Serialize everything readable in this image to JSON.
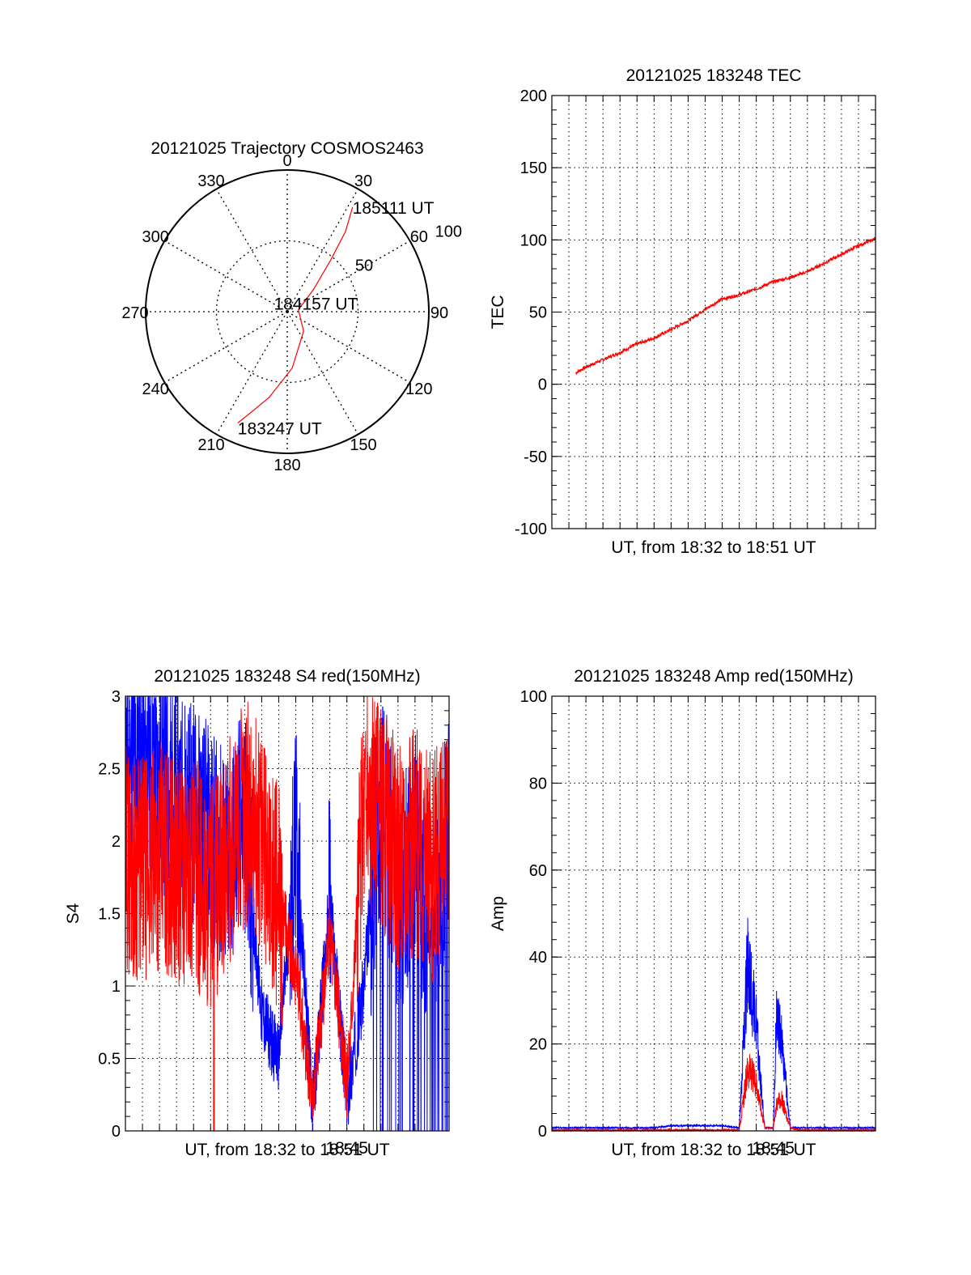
{
  "colors": {
    "red": "#ff0000",
    "blue": "#0000ff",
    "axis": "#000000",
    "grid": "#000000"
  },
  "chart_data": [
    {
      "type": "polar",
      "title": "20121025 Trajectory COSMOS2463",
      "angle_labels": [
        "0",
        "30",
        "60",
        "90",
        "120",
        "150",
        "180",
        "210",
        "240",
        "270",
        "300",
        "330"
      ],
      "angles": [
        0,
        30,
        60,
        90,
        120,
        150,
        180,
        210,
        240,
        270,
        300,
        330
      ],
      "ring_labels": [
        "50",
        "100"
      ],
      "grid": "dotted",
      "series": [
        {
          "color": "red",
          "points": [
            [
              204,
              86
            ],
            [
              200,
              76
            ],
            [
              192,
              62
            ],
            [
              175,
              40
            ],
            [
              140,
              18
            ],
            [
              80,
              8
            ],
            [
              50,
              24
            ],
            [
              40,
              48
            ],
            [
              36,
              70
            ],
            [
              32,
              87
            ]
          ]
        }
      ],
      "annotations": [
        {
          "text": "185111 UT",
          "angle": 32,
          "radius": 87
        },
        {
          "text": "184157 UT",
          "angle": 80,
          "radius": 2
        },
        {
          "text": "183247 UT",
          "angle": 204,
          "radius": 86
        }
      ]
    },
    {
      "type": "line",
      "title": "20121025 183248 TEC",
      "xlabel": "UT, from 18:32 to 18:51 UT",
      "ylabel": "TEC",
      "ylim": [
        -100,
        200
      ],
      "yticks": [
        "200",
        "150",
        "100",
        "50",
        "0",
        "-50",
        "-100"
      ],
      "grid": "dotted",
      "xlim": [
        "18:32",
        "18:51"
      ],
      "series": [
        {
          "color": "red",
          "x": [
            "18:32",
            "18:33",
            "18:34",
            "18:35",
            "18:36",
            "18:37",
            "18:38",
            "18:39",
            "18:40",
            "18:41",
            "18:42",
            "18:43",
            "18:44",
            "18:45",
            "18:46",
            "18:47",
            "18:48",
            "18:49",
            "18:50",
            "18:51"
          ],
          "y": [
            0,
            5,
            12,
            17,
            22,
            28,
            32,
            38,
            44,
            52,
            59,
            62,
            66,
            71,
            74,
            78,
            84,
            90,
            96,
            101
          ]
        }
      ]
    },
    {
      "type": "line",
      "title": "20121025 183248 S4 red(150MHz)",
      "xlabel": "UT, from 18:32 to 18:51 UT",
      "xticks": [
        "18:45"
      ],
      "ylabel": "S4",
      "ylim": [
        0,
        3
      ],
      "yticks": [
        "3",
        "2.5",
        "2",
        "1.5",
        "1",
        "0.5",
        "0"
      ],
      "grid": "dotted",
      "xlim": [
        "18:32",
        "18:51"
      ],
      "series": [
        {
          "color": "blue",
          "x": [
            "18:32",
            "18:33",
            "18:34",
            "18:35",
            "18:36",
            "18:37",
            "18:38",
            "18:39",
            "18:40",
            "18:41",
            "18:42",
            "18:43",
            "18:44",
            "18:45",
            "18:46",
            "18:47",
            "18:48",
            "18:49",
            "18:50",
            "18:51"
          ],
          "y": [
            2.5,
            2.6,
            2.4,
            2.3,
            2.2,
            2.0,
            1.8,
            2.2,
            0.8,
            0.5,
            2.0,
            0.15,
            1.6,
            0.2,
            1.0,
            2.4,
            1.5,
            2.0,
            1.3,
            2.2
          ]
        },
        {
          "color": "red",
          "x": [
            "18:32",
            "18:33",
            "18:34",
            "18:35",
            "18:36",
            "18:37",
            "18:38",
            "18:39",
            "18:40",
            "18:41",
            "18:42",
            "18:43",
            "18:44",
            "18:45",
            "18:46",
            "18:47",
            "18:48",
            "18:49",
            "18:50",
            "18:51"
          ],
          "y": [
            1.9,
            1.8,
            1.9,
            1.8,
            1.8,
            1.6,
            1.9,
            2.2,
            2.0,
            1.6,
            1.1,
            0.2,
            1.4,
            0.3,
            2.3,
            2.2,
            1.9,
            2.0,
            1.8,
            2.0
          ]
        }
      ]
    },
    {
      "type": "line",
      "title": "20121025 183248 Amp red(150MHz)",
      "xlabel": "UT, from 18:32 to 18:51 UT",
      "xticks": [
        "18:45"
      ],
      "ylabel": "Amp",
      "ylim": [
        0,
        100
      ],
      "yticks": [
        "100",
        "80",
        "60",
        "40",
        "20",
        "0"
      ],
      "grid": "dotted",
      "xlim": [
        "18:32",
        "18:51"
      ],
      "series": [
        {
          "color": "blue",
          "x": [
            "18:32",
            "18:38",
            "18:39",
            "18:42",
            "18:43",
            "18:43.5",
            "18:44",
            "18:44.5",
            "18:45",
            "18:45.2",
            "18:45.5",
            "18:46",
            "18:46.5",
            "18:51"
          ],
          "y": [
            0.5,
            0.5,
            1.0,
            1.0,
            0.5,
            50,
            30,
            0.5,
            0.5,
            35,
            25,
            0.5,
            0.5,
            0.5
          ]
        },
        {
          "color": "red",
          "x": [
            "18:32",
            "18:43",
            "18:43.5",
            "18:44",
            "18:44.5",
            "18:45",
            "18:45.2",
            "18:45.5",
            "18:46",
            "18:46.5",
            "18:51"
          ],
          "y": [
            0,
            0,
            18,
            14,
            0.5,
            0.5,
            8,
            9,
            0.5,
            0,
            0
          ]
        }
      ]
    }
  ]
}
